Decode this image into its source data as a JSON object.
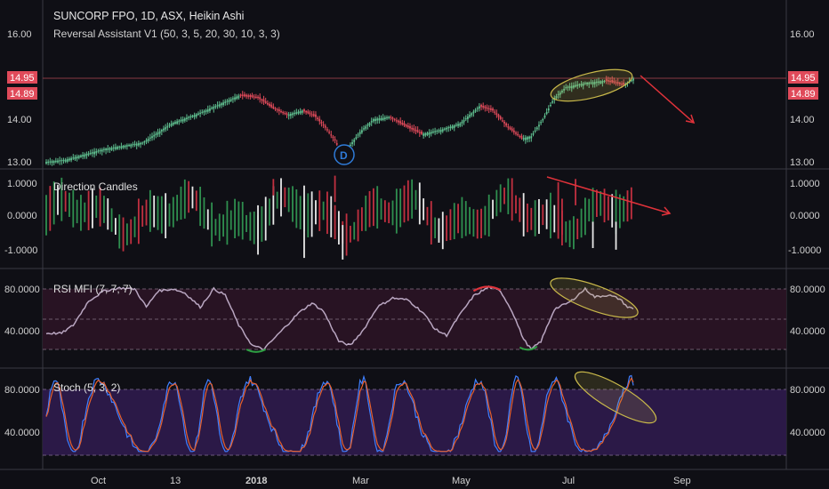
{
  "header": {
    "title": "SUNCORP FPO, 1D, ASX, Heikin Ashi",
    "indicator": "Reversal Assistant V1 (50, 3, 5, 20, 30, 10, 3, 3)"
  },
  "colors": {
    "background": "#0f0f15",
    "up": "#5fbf8f",
    "down": "#e04a5a",
    "rsi_line": "#b9a6c1",
    "rsi_hot": "#e0323a",
    "rsi_cold": "#2ea043",
    "stoch_k": "#3f7fff",
    "stoch_d": "#e8602c",
    "annotation_red": "#e0323a",
    "annotation_ellipse": "#c8b84a",
    "rsi_band": "#2a1424",
    "stoch_band": "#2d1a4a",
    "price_tag": "#e04a5a"
  },
  "x_axis": {
    "ticks": [
      "Oct",
      "13",
      "2018",
      "Mar",
      "May",
      "Jul",
      "Sep"
    ]
  },
  "badge": {
    "label": "D"
  },
  "chart_data": [
    {
      "type": "candlestick",
      "title": "SUNCORP FPO, 1D, ASX, Heikin Ashi",
      "ylim": [
        12.9,
        16.3
      ],
      "yticks": [
        "16.00",
        "14.00",
        "13.00"
      ],
      "price_labels": [
        "14.95",
        "14.89"
      ],
      "y_anchor_points": [
        [
          0,
          13.0
        ],
        [
          10,
          13.05
        ],
        [
          30,
          13.3
        ],
        [
          50,
          13.45
        ],
        [
          65,
          13.9
        ],
        [
          80,
          14.15
        ],
        [
          90,
          14.35
        ],
        [
          100,
          14.55
        ],
        [
          110,
          14.5
        ],
        [
          118,
          14.25
        ],
        [
          125,
          14.1
        ],
        [
          133,
          14.2
        ],
        [
          140,
          14.05
        ],
        [
          145,
          13.8
        ],
        [
          150,
          13.5
        ],
        [
          153,
          13.2
        ],
        [
          158,
          13.4
        ],
        [
          163,
          13.7
        ],
        [
          170,
          14.0
        ],
        [
          178,
          14.05
        ],
        [
          186,
          13.85
        ],
        [
          195,
          13.65
        ],
        [
          205,
          13.75
        ],
        [
          215,
          13.9
        ],
        [
          225,
          14.3
        ],
        [
          232,
          14.2
        ],
        [
          240,
          13.8
        ],
        [
          247,
          13.55
        ],
        [
          252,
          13.6
        ],
        [
          258,
          14.0
        ],
        [
          264,
          14.5
        ],
        [
          270,
          14.75
        ],
        [
          280,
          14.85
        ],
        [
          290,
          14.9
        ],
        [
          300,
          14.8
        ],
        [
          305,
          14.95
        ]
      ]
    },
    {
      "type": "bar",
      "title": "Direction Candles",
      "ylim": [
        -1.4,
        1.4
      ],
      "yticks": [
        "1.0000",
        "0.0000",
        "-1.0000"
      ]
    },
    {
      "type": "line",
      "title": "RSI MFI (7, 7, 7)",
      "ylim": [
        14,
        90
      ],
      "yticks": [
        "80.0000",
        "40.0000"
      ],
      "series": [
        {
          "name": "",
          "points": [
            [
              0,
              36
            ],
            [
              8,
              36
            ],
            [
              14,
              44
            ],
            [
              22,
              68
            ],
            [
              30,
              78
            ],
            [
              38,
              81
            ],
            [
              46,
              80
            ],
            [
              52,
              62
            ],
            [
              58,
              78
            ],
            [
              66,
              80
            ],
            [
              72,
              76
            ],
            [
              80,
              62
            ],
            [
              87,
              80
            ],
            [
              93,
              74
            ],
            [
              100,
              44
            ],
            [
              107,
              24
            ],
            [
              113,
              20
            ],
            [
              118,
              30
            ],
            [
              124,
              42
            ],
            [
              131,
              56
            ],
            [
              138,
              66
            ],
            [
              144,
              58
            ],
            [
              152,
              28
            ],
            [
              158,
              24
            ],
            [
              165,
              40
            ],
            [
              172,
              62
            ],
            [
              180,
              71
            ],
            [
              188,
              69
            ],
            [
              196,
              56
            ],
            [
              202,
              40
            ],
            [
              208,
              34
            ],
            [
              214,
              52
            ],
            [
              222,
              73
            ],
            [
              230,
              82
            ],
            [
              236,
              78
            ],
            [
              242,
              58
            ],
            [
              248,
              30
            ],
            [
              252,
              20
            ],
            [
              257,
              28
            ],
            [
              264,
              60
            ],
            [
              272,
              67
            ],
            [
              280,
              80
            ],
            [
              285,
              72
            ],
            [
              292,
              74
            ],
            [
              298,
              70
            ],
            [
              302,
              62
            ],
            [
              310,
              58
            ]
          ]
        }
      ]
    },
    {
      "type": "line",
      "title": "Stoch (5, 3, 2)",
      "ylim": [
        10,
        100
      ],
      "yticks": [
        "80.0000",
        "40.0000"
      ],
      "series": [
        {
          "name": "",
          "values": []
        },
        {
          "name": "",
          "values": []
        }
      ]
    }
  ]
}
